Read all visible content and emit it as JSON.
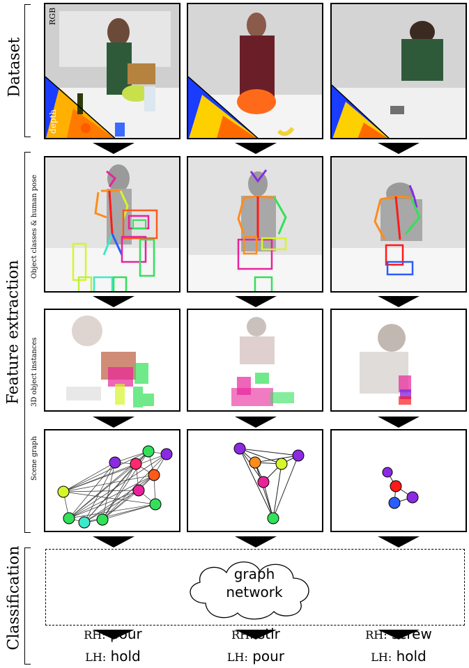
{
  "sections": {
    "dataset": "Dataset",
    "feature_extraction": "Feature extraction",
    "classification": "Classification"
  },
  "row_labels": {
    "pose": "Object classes & human pose",
    "objects3d": "3D object instances",
    "scene_graph": "Scene graph"
  },
  "image_labels": {
    "rgb": "RGB",
    "depth": "depth"
  },
  "classifier": {
    "line1": "graph",
    "line2": "network"
  },
  "results": [
    {
      "rh_prefix": "RH:",
      "rh_action": "pour",
      "lh_prefix": "LH:",
      "lh_action": "hold"
    },
    {
      "rh_prefix": "RH:",
      "rh_action": "stir",
      "lh_prefix": "LH:",
      "lh_action": "pour"
    },
    {
      "rh_prefix": "RH:",
      "rh_action": "screw",
      "lh_prefix": "LH:",
      "lh_action": "hold"
    }
  ],
  "colors": {
    "depth_blue": "#1a3cff",
    "depth_yellow": "#ffe600",
    "depth_red": "#ff2a00",
    "node_purple": "#8a2be2",
    "node_magenta": "#e8239a",
    "node_orange": "#ff8c1a",
    "node_yellowgreen": "#d7f52a",
    "node_green": "#33e05a",
    "node_cyan": "#3fe8c8",
    "node_red": "#ff1a1a",
    "node_blue": "#2a5cff",
    "node_pink": "#ff2a6e"
  }
}
